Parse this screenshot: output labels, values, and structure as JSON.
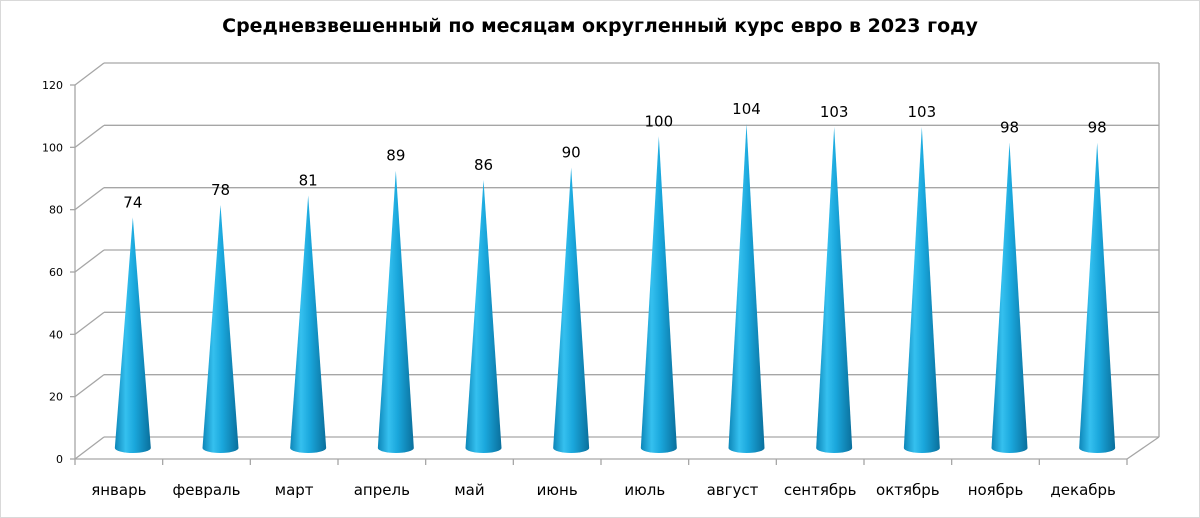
{
  "chart_data": {
    "type": "bar",
    "subtype": "3d-cone",
    "title": "Средневзвешенный по месяцам округленный курс евро в 2023 году",
    "xlabel": "",
    "ylabel": "",
    "categories": [
      "январь",
      "февраль",
      "март",
      "апрель",
      "май",
      "июнь",
      "июль",
      "август",
      "сентябрь",
      "октябрь",
      "ноябрь",
      "декабрь"
    ],
    "values": [
      74,
      78,
      81,
      89,
      86,
      90,
      100,
      104,
      103,
      103,
      98,
      98
    ],
    "ylim": [
      0,
      120
    ],
    "yticks": [
      0,
      20,
      40,
      60,
      80,
      100,
      120
    ],
    "grid": true,
    "legend": "none",
    "colors": {
      "cone": "#1aa7dc",
      "cone_light": "#7fd6f5",
      "cone_dark": "#0a6f9c",
      "grid": "#a6a6a6"
    }
  }
}
